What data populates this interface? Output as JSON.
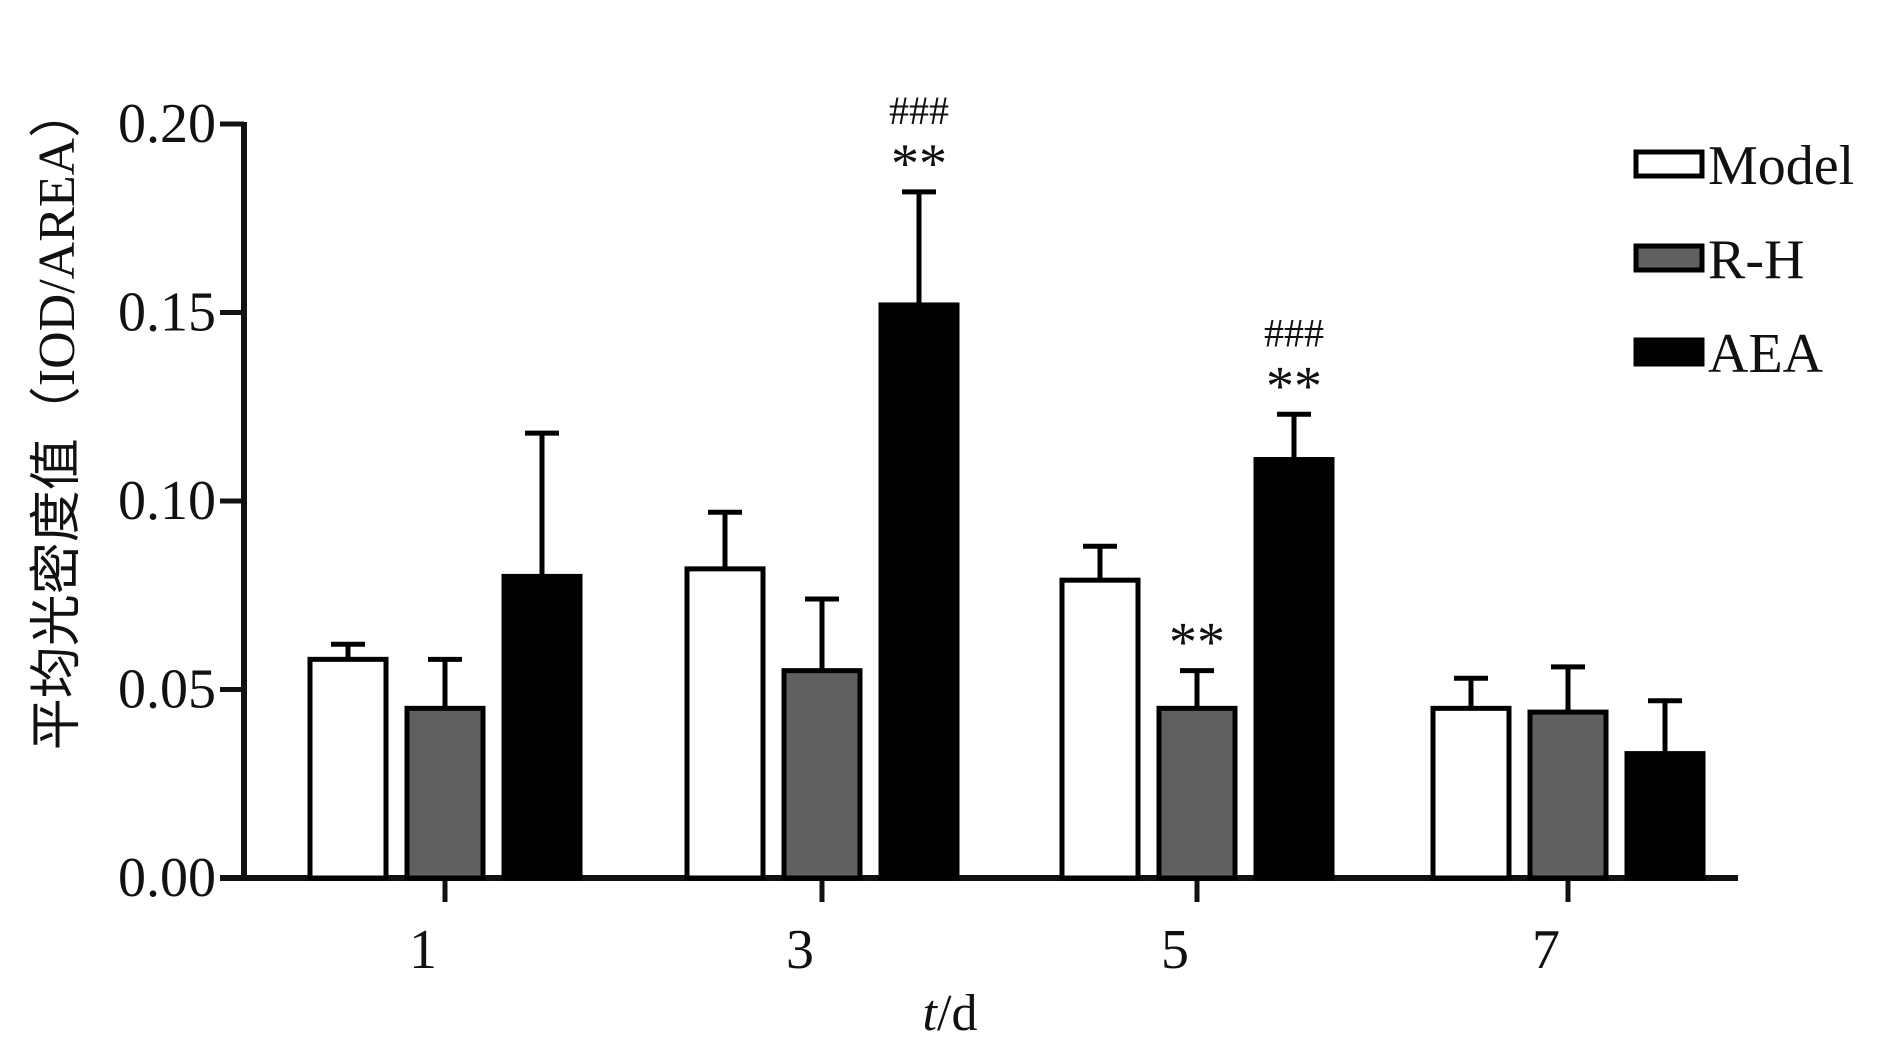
{
  "chart_data": {
    "type": "bar",
    "ylabel": "平均光密度值（IOD/AREA）",
    "xlabel": {
      "italic": "t",
      "rest": "/d"
    },
    "categories": [
      "1",
      "3",
      "5",
      "7"
    ],
    "ylim": [
      0,
      0.2
    ],
    "yticks": [
      {
        "value": 0.0,
        "label": "0.00"
      },
      {
        "value": 0.05,
        "label": "0.05"
      },
      {
        "value": 0.1,
        "label": "0.10"
      },
      {
        "value": 0.15,
        "label": "0.15"
      },
      {
        "value": 0.2,
        "label": "0.20"
      }
    ],
    "grid": false,
    "legend_position": "top-right",
    "series": [
      {
        "name": "Model",
        "fill": "#ffffff",
        "values": [
          0.058,
          0.082,
          0.079,
          0.045
        ],
        "errors": [
          0.004,
          0.015,
          0.009,
          0.008
        ]
      },
      {
        "name": "R-H",
        "fill": "#606060",
        "values": [
          0.045,
          0.055,
          0.045,
          0.044
        ],
        "errors": [
          0.013,
          0.019,
          0.01,
          0.012
        ]
      },
      {
        "name": "AEA",
        "fill": "#000000",
        "values": [
          0.08,
          0.152,
          0.111,
          0.033
        ],
        "errors": [
          0.038,
          0.03,
          0.012,
          0.014
        ]
      }
    ],
    "annotations": [
      {
        "category": "3",
        "series": "AEA",
        "lines": [
          "###",
          "**"
        ]
      },
      {
        "category": "5",
        "series": "AEA",
        "lines": [
          "###",
          "**"
        ]
      },
      {
        "category": "5",
        "series": "R-H",
        "lines": [
          "**"
        ]
      }
    ]
  }
}
